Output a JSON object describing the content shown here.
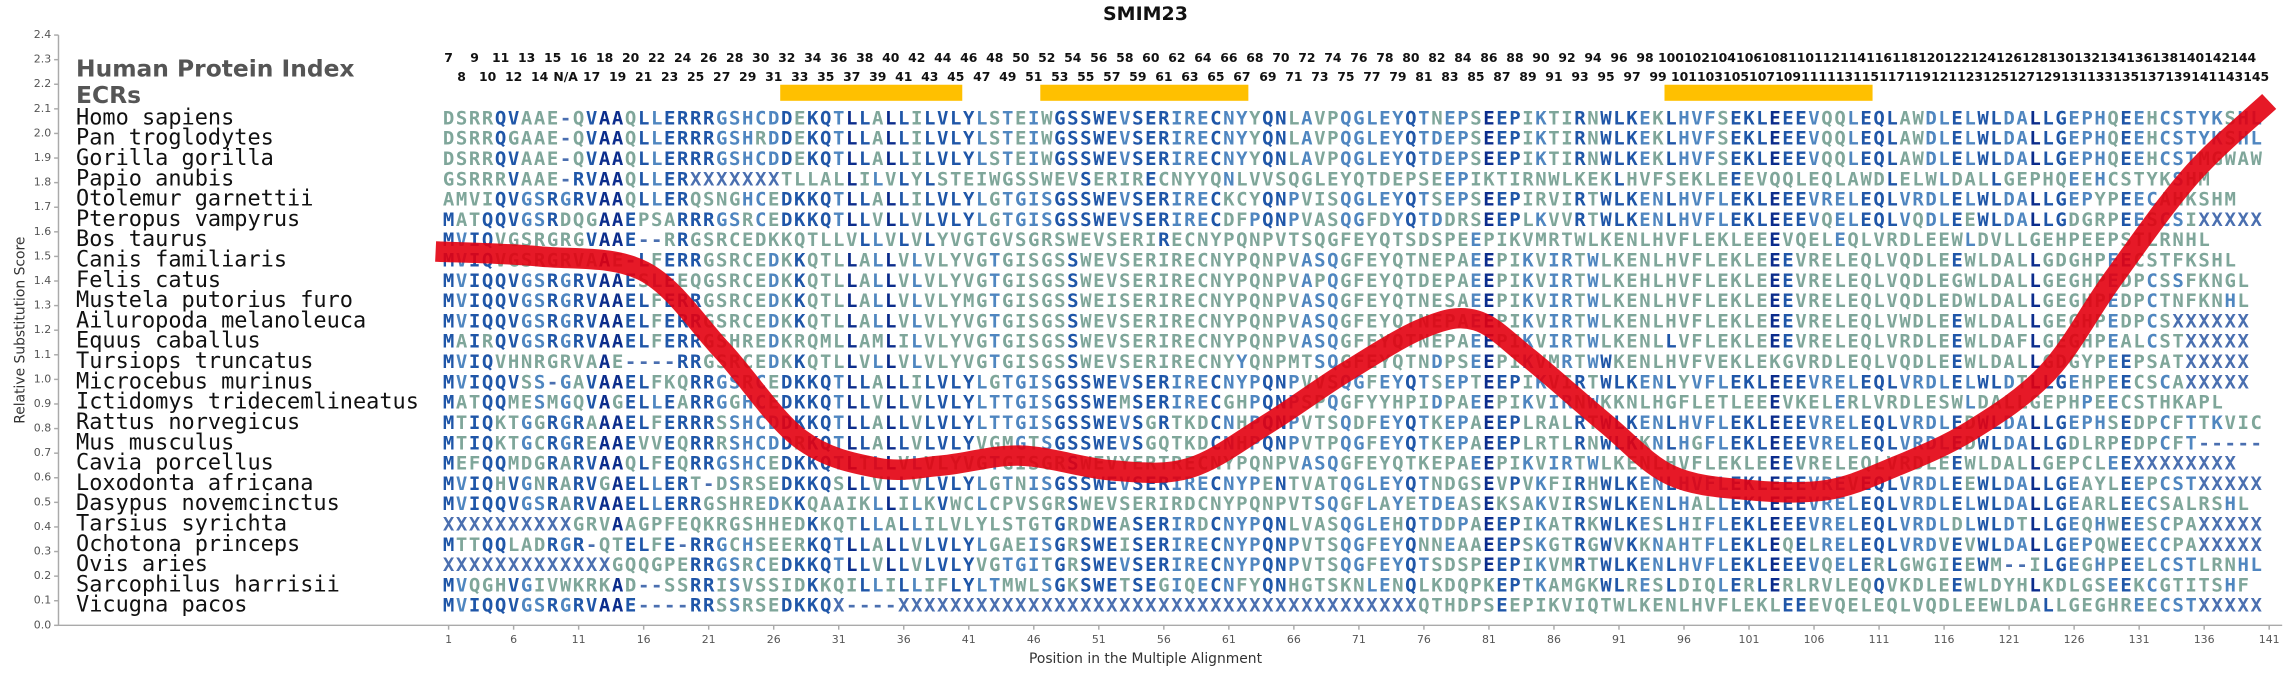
{
  "chart_data": {
    "type": "line",
    "title": "SMIM23",
    "xlabel": "Position in the Multiple Alignment",
    "ylabel": "Relative Substitution Score",
    "xlim": [
      -29,
      142
    ],
    "ylim": [
      0,
      2.4
    ],
    "xticks": [
      1,
      6,
      11,
      16,
      21,
      26,
      31,
      36,
      41,
      46,
      51,
      56,
      61,
      66,
      71,
      76,
      81,
      86,
      91,
      96,
      101,
      106,
      111,
      116,
      121,
      126,
      131,
      136,
      141
    ],
    "yticks": [
      {
        "value": 0,
        "label": "0.0"
      },
      0.1,
      0.2,
      0.3,
      0.4,
      0.5,
      0.6,
      0.7,
      0.8,
      0.9,
      {
        "value": 1,
        "label": "1.0"
      },
      1.1,
      1.2,
      1.3,
      1.4,
      1.5,
      1.6,
      1.7,
      1.8,
      1.9,
      {
        "value": 2,
        "label": "2.0"
      },
      2.1,
      2.2,
      2.3,
      2.4
    ],
    "color": "#e3000f",
    "x": [
      0,
      8,
      16,
      22,
      28,
      34,
      39,
      45,
      52,
      58,
      64,
      70,
      76,
      80,
      84,
      90,
      95,
      101,
      107,
      112,
      118,
      124,
      129,
      135,
      141
    ],
    "values": [
      1.52,
      1.5,
      1.44,
      1.12,
      0.76,
      0.64,
      0.65,
      0.69,
      0.63,
      0.64,
      0.82,
      1.03,
      1.21,
      1.24,
      1.09,
      0.82,
      0.61,
      0.55,
      0.55,
      0.64,
      0.79,
      1.03,
      1.41,
      1.83,
      2.13
    ]
  },
  "alignment": {
    "index_title": "Human Protein Index",
    "ecr_label": "ECRs",
    "index_row1": [
      7,
      9,
      11,
      13,
      15,
      16,
      18,
      20,
      22,
      24,
      26,
      28,
      30,
      32,
      34,
      36,
      38,
      40,
      42,
      44,
      46,
      48,
      50,
      52,
      54,
      56,
      58,
      60,
      62,
      64,
      66,
      68,
      70,
      72,
      74,
      76,
      78,
      80,
      82,
      84,
      86,
      88,
      90,
      92,
      94,
      96,
      98,
      100,
      102,
      104,
      106,
      108,
      110,
      112,
      114,
      116,
      118,
      120,
      122,
      124,
      126,
      128,
      130,
      132,
      134,
      136,
      138,
      140,
      142,
      144
    ],
    "index_row2": [
      8,
      10,
      12,
      14,
      "N/A",
      17,
      19,
      21,
      23,
      25,
      27,
      29,
      31,
      33,
      35,
      37,
      39,
      41,
      43,
      45,
      47,
      49,
      51,
      53,
      55,
      57,
      59,
      61,
      63,
      65,
      67,
      69,
      71,
      73,
      75,
      77,
      79,
      81,
      83,
      85,
      87,
      89,
      91,
      93,
      95,
      97,
      99,
      101,
      103,
      105,
      107,
      109,
      111,
      113,
      115,
      117,
      119,
      121,
      123,
      125,
      127,
      129,
      131,
      133,
      135,
      137,
      139,
      141,
      143,
      145
    ],
    "ecrs": [
      [
        27,
        40
      ],
      [
        47,
        62
      ],
      [
        95,
        110
      ]
    ],
    "species": [
      "Homo sapiens",
      "Pan troglodytes",
      "Gorilla gorilla",
      "Papio anubis",
      "Otolemur garnettii",
      "Pteropus vampyrus",
      "Bos taurus",
      "Canis familiaris",
      "Felis catus",
      "Mustela putorius furo",
      "Ailuropoda melanoleuca",
      "Equus caballus",
      "Tursiops truncatus",
      "Microcebus murinus",
      "Ictidomys tridecemlineatus",
      "Rattus norvegicus",
      "Mus musculus",
      "Cavia porcellus",
      "Loxodonta africana",
      "Dasypus novemcinctus",
      "Tarsius syrichta",
      "Ochotona princeps",
      "Ovis aries",
      "Sarcophilus harrisii",
      "Vicugna pacos"
    ],
    "sequences": [
      "DSRRQVAAE-QVAAQLLERRRGSHCDDEKQTLLALLILVLYLSTEIWGSSWEVSERIRECNYYQNLAVPQGLEYQTNEPSEEPIKTIRNWLKEKLHVFSEKLEEEVQQLEQLAWDLELWLDALLGEPHQEEHCSTYKSHL",
      "DSRRQGAAE-QVAAQLLERRRGSHRDDEKQTLLALLILVLYLSTEIWGSSWEVSERIRECNYYQNLAVPQGLEYQTDEPSEEPIKTIRNWLKEKLHVFSEKLEEEVQQLEQLAWDLELWLDALLGEPHQEEHCSTYKSHL",
      "DSRRQVAAE-QVAAQLLERRRGSHCDDEKQTLLALLILVLYLSTEIWGSSWEVSERIRECNYYQNLAVPQGLEYQTDEPSEEPIKTIRNWLKEKLHVFSEKLEEEVQQLEQLAWDLELWLDALLGEPHQEEHCSTMGWAW",
      "GSRRRVAAE-RVAAQLLERXXXXXXXTLLALLILVLYLSTEIWGSSWEVSERIRECNYYQNLVVSQGLEYQTDEPSEEPIKTIRNWLKEKLHVFSEKLEEEVQQLEQLAWDLELWLDALLGEPHQEEHCSTYKSHM",
      "AMVIQVGSRGRVAAQLLERQSNGHCEDKKQTLLALLILVLYLGTGISGSSWEVSERIRECKCYQNPVISQGLEYQTSEPSEEPIRVIRTWLKENLHVFLEKLEEEVRELEQLVRDLELWLDALLGEPYPEECAHKSHM",
      "MATQQVGSRDQGAAEPSARRRGSRCEDKKQTLLVLLVLVLYLGTGISGSSWEVSERIRECDFPQNPVASQGFDYQTDDRSEEPLKVVRTWLKENLHVFLEKLEEEVQELEQLVQDLEEWLDALLGDGRPEESCSIXXXXX",
      "MVIQVGSRGRGVAAE--RRGSRCEDKKQTLLVLLVLVLYVGTGVSGRSWEVSERIRECNYPQNPVTSQGFEYQTSDSPEEPIKVMRTWLKENLHVFLEKLEEEVQELEQLVRDLEEWLDVLLGEHPEEPSTLRNHL",
      "MVIQVGSRGRVAAE-LFERRGSRCEDKKQTLLALLVLVLYVGTGISGSSWEVSERIRECNYPQNPVASQGFEYQTNEPAEEPIKVIRTWLKENLHVFLEKLEEEVRELEQLVQDLEEWLDALLGDGHPEECSTFKSHL",
      "MVIQQVGSRGRVAAESLEEQGSRCEDKKQTLLALLVLVLYVGTGISGSSWEVSERIRECNYPQNPVAPQGFEYQTDEPAEEPIKVIRTWLKEHLHVFLEKLEEEVRELEQLVQDLEGWLDALLGEGHPEDPCSSFKNGL",
      "MVIQQVGSRGRVAAELFERRGSRCEDKKQTLLALLVLVLYMGTGISGSSWEISERIRECNYPQNPVASQGFEYQTNESAEEPIKVIRTWLKENLHVFLEKLEEEVRELEQLVQDLEDWLDALLGEGHPEDPCTNFKNHL",
      "MVIQQVGSRGRVAAELFERRGSRCEDKKQTLLALLVLVLYVGTGISGSSWEVSERIRECNYPQNPVASQGFEYQTNEPAEEPIKVIRTWLKENLHVFLEKLEEEVRELEQLVWDLEEWLDALLGEGHPEDPCSXXXXXX",
      "MAIRQVGSRGRVAAELFERRGSHREDKRQMLLAMLILVLYVGTGISGSSWEVSERIRECNYPQNPVASQGFEYQTNEPAEEPIKVIRTWLKENLLVFLEKLEEEVRELEQLVRDLEEWLDAFLGEGHPEALCSTXXXXX",
      "MVIQVHNRGRVAAE----RRGSRCEDKKQTLLVLLVLVLYVGTGISGSSWEVSERIRECNYYQNPMTSQGFEYQTNDPSEEPIKVMRTWWKENLHVFVEKLEKGVRDLEQLVQDLEEWLDALLGDGYPEEPSATXXXXX",
      "MVIQQVSS-GAVAAELFKQRRGSRCEDKKQTLLALLILVLYLGTGISGSSWEVSERIRECNYPQNPVVSQGFEYQTSEPTEEPIKVIRTWLKENLYVFLEKLEEEVRELEQLVRDLELWLDTLLGEHPEECSCAXXXXX",
      "MATQQMESMGQVAGELLEARRGGHCEDKKQTLLVLLVLVLYLTTGISGSSWEMSERIRECGHPQNPSPQGFYYHPIDPAEEPIKVIRNWKKNLHGFLETLEEEVKELERLVRDLESWLDALLGEPHPEECSTHKAPL",
      "MTIQKTGGRGRAAAELFERRRSSHCDDKKQTLLALLVLVLYLTTGISGSSWEVSGRTKDCNHPQNPVTSQDFEYQTKEPAEEPLRALRTWLKENLHVFLEKLEEEVRELEQLVRDLEDWLDALLGEPHSEDPCFTTKVIC",
      "MTIQKTGCRGREAAEVVEQRRRSHCDDRKQTLLALLVLVLYVGMGTSGSSWEVSGQTKDCNHPQNPVTPQGFEYQTKEPAEEPLRTLRNWLKKNLHGFLEKLEEEVRELEQLVRDLEDWLDALLGDLRPEDPCFT-----",
      "MEFQQMDGRARVAAQLFEQRRGSHCEDKKQTLTLLVLVLYVGTGISGRSWEVYERTRECNYPQNPVASQGFEYQTKEPAEEPIKVIRTWLKENLHVFLEKLEEEVRELEQLVRDLEEWLDALLGEPCLEEXXXXXXXX",
      "MVIQHVGNRARVGAELLERT-DSRSEDKKQSLLVLLVLVLYLGTNISGSSWEVSERIRECNYPENTVATQGLEYQTNDGSEVPVKFIRHWLKENLHVFLEKLEEEVREVEQLVRDLEEWLDALLGEAYLEEPCSTXXXXX",
      "MVIQQVGSRARVAAELLERRGSHREDKKQAAIKLLILKVWCLCPVSGRSWEVSERIRDCNYPQNPVTSQGFLAYETDEASEKSAKVIRSWLKENLHALLEKLEEEVRELEQLVRDLELWLDALLGEARLEECSALRSHL",
      "XXXXXXXXXXGRVAAGPFEQKRGSHHEDKKQTLLALLILVLYLSTGTGRDWEASERIRDCNYPQNLVASQGLEHQTDDPAEEPIKATRKWLKESLHIFLEKLEEEVRELEQLVRDLDLWLDTLLGEQHWEESCPAXXXXX",
      "MTTQQLADRGR-QTELFE-RRGCHSEERKQTLLALLVLVLYLGAEISGRSWEISERIRECNYPQNPVTSQGFEYQNNEAAEEPSKGTRGWVKKNAHTFLEKLEQELRELEQLVRDVEVWLDALLGEPQWEECCPAXXXXX",
      "XXXXXXXXXXXXXGQQGPERRGSRCEDKKQTLLVLLVLVLYVGTGITGRSWEVSERIRECNYPQNPVTSQGFEYQTSDSPEEPIKVMRTWLKENLHVFLEKLEEEVQELERLGWGIEEWM--ILGEGHPEELCSTLRNHL",
      "MVQGHVGIVWKRKAD--SSRRISVSSIDKKQILLILLIFLYLTMWLSGKSWETSEGIQECNFYQNHGTSKNLENQLKDQPKEPTKAMGKWLRESLDIQLERLERLRVLEQQVKDLEEWLDYHLKDLGSEEKCGTITSHF",
      "MVIQQVGSRGRVAAE----RRSSRSEDKKQX----XXXXXXXXXXXXXXXXXXXXXXXXXXXXXXXXXXXXXXXXQTHDPSEEPIKVIQTWLKENLHVFLEKLEEEVQELEQLVQDLEEWLDALLGEGHREECSTXXXXX"
    ]
  }
}
